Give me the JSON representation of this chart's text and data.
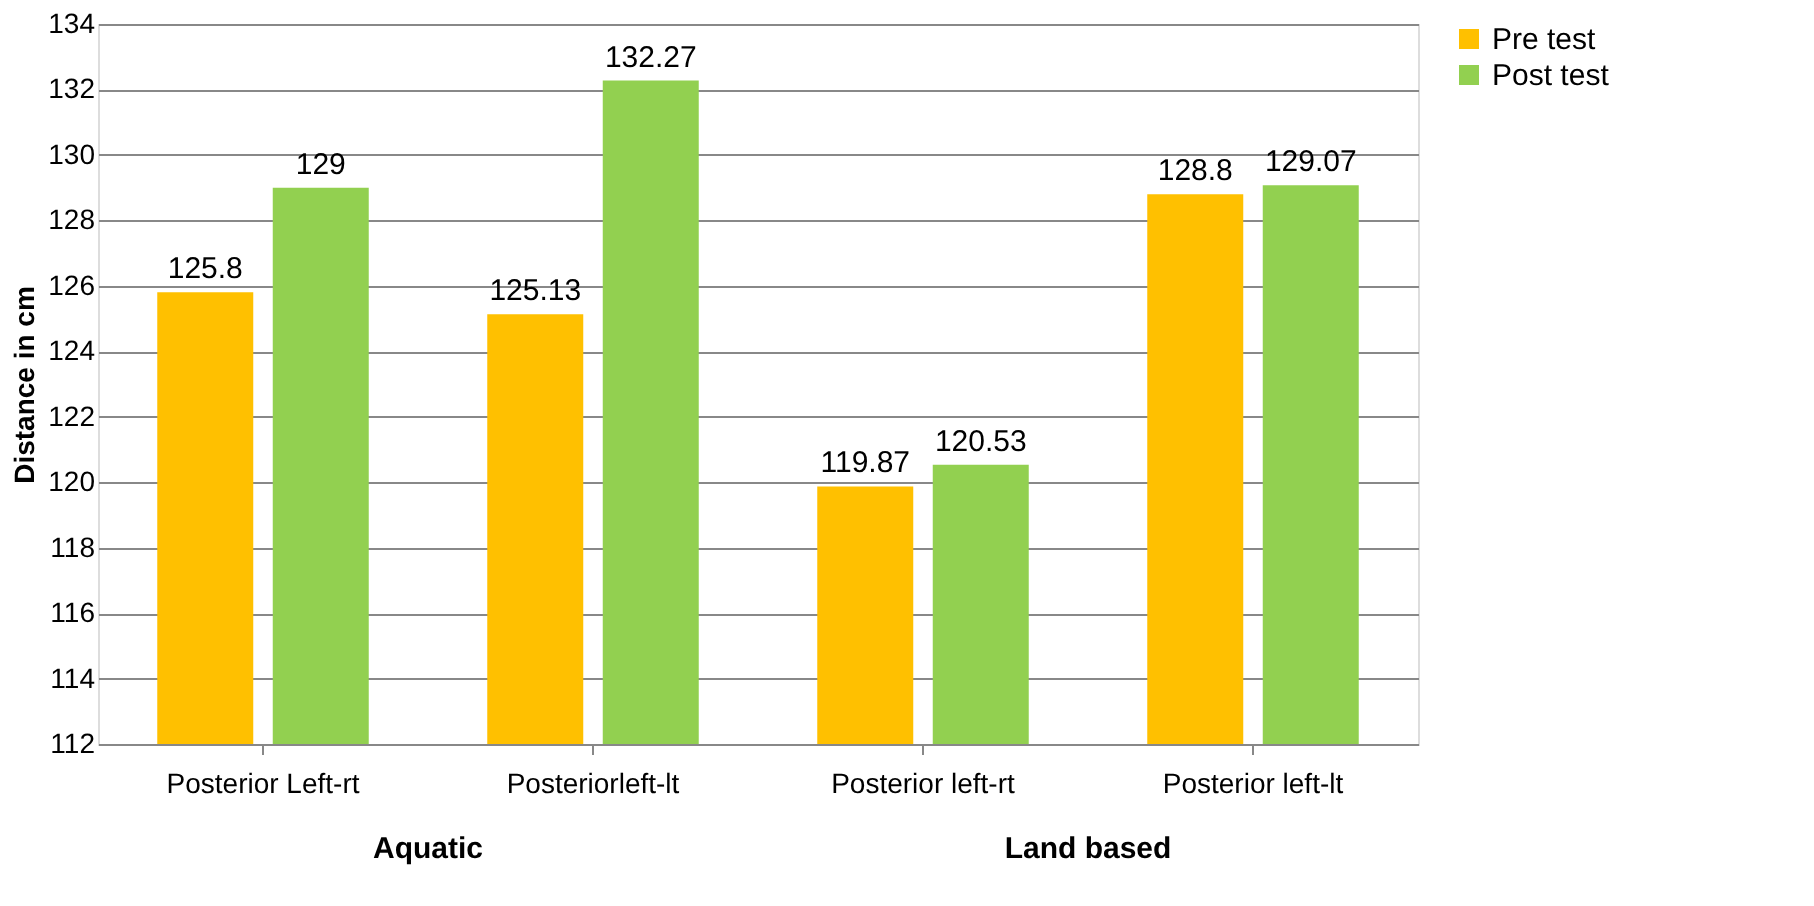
{
  "chart_data": {
    "type": "bar",
    "ylabel": "Distance in cm",
    "categories": [
      "Posterior Left-rt",
      "Posteriorleft-lt",
      "Posterior left-rt",
      "Posterior left-lt"
    ],
    "series": [
      {
        "name": "Pre test",
        "color": "#ffc000",
        "values": [
          125.8,
          125.13,
          119.87,
          128.8
        ]
      },
      {
        "name": "Post test",
        "color": "#92d050",
        "values": [
          129,
          132.27,
          120.53,
          129.07
        ]
      }
    ],
    "ylim": [
      112,
      134
    ],
    "yticks": [
      112,
      114,
      116,
      118,
      120,
      122,
      124,
      126,
      128,
      130,
      132,
      134
    ],
    "grid": "y",
    "legend": "right",
    "data_labels": true,
    "annotations": [
      "Aquatic",
      "Land based"
    ]
  }
}
